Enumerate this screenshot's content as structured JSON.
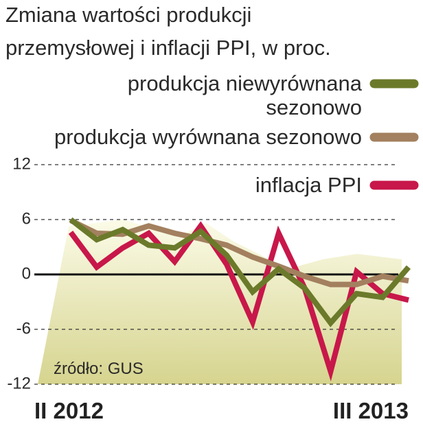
{
  "chart_data": {
    "type": "line",
    "title": [
      "Zmiana wartości produkcji",
      "przemysłowej i inflacji PPI, w proc."
    ],
    "categories": [
      "II 2012",
      null,
      null,
      null,
      null,
      null,
      null,
      null,
      null,
      null,
      null,
      null,
      null,
      "III 2013"
    ],
    "series": [
      {
        "name": "produkcja niewyrównana sezonowo",
        "color": "#6b7a2a",
        "values": [
          6.0,
          3.8,
          4.9,
          3.2,
          2.9,
          4.7,
          2.1,
          -1.9,
          0.6,
          -1.5,
          -5.3,
          -2.1,
          -2.5,
          0.8
        ]
      },
      {
        "name": "produkcja wyrównana sezonowo",
        "color": "#a3805f",
        "values": [
          5.9,
          4.5,
          4.4,
          5.3,
          4.5,
          3.9,
          3.2,
          1.9,
          0.9,
          -0.2,
          -1.1,
          -1.1,
          -0.2,
          -0.7
        ]
      },
      {
        "name": "inflacja PPI",
        "color": "#c8174a",
        "values": [
          4.6,
          0.8,
          2.9,
          4.5,
          1.4,
          5.3,
          1.1,
          -5.2,
          4.5,
          -1.5,
          -10.6,
          0.3,
          -2.1,
          -2.8
        ]
      }
    ],
    "ylim": [
      -12,
      12
    ],
    "yticks": [
      -12,
      -6,
      0,
      6,
      12
    ],
    "grid": true,
    "source": "źródło: GUS"
  }
}
